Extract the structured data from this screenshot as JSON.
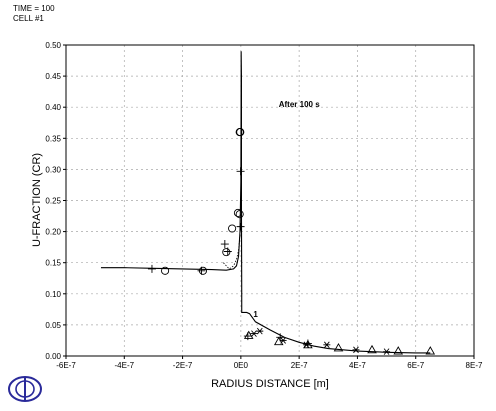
{
  "header": {
    "time": "TIME = 100",
    "cell": "CELL #1"
  },
  "chart_data": {
    "type": "line",
    "title": "",
    "xlabel": "RADIUS DISTANCE [m]",
    "ylabel": "U-FRACTION (CR)",
    "xlim": [
      -6e-07,
      8e-07
    ],
    "ylim": [
      0,
      0.5
    ],
    "grid": true,
    "x_ticks": [
      {
        "v": -6e-07,
        "label": "-6E-7"
      },
      {
        "v": -4e-07,
        "label": "-4E-7"
      },
      {
        "v": -2e-07,
        "label": "-2E-7"
      },
      {
        "v": 0,
        "label": "0E0"
      },
      {
        "v": 2e-07,
        "label": "2E-7"
      },
      {
        "v": 4e-07,
        "label": "4E-7"
      },
      {
        "v": 6e-07,
        "label": "6E-7"
      },
      {
        "v": 8e-07,
        "label": "8E-7"
      }
    ],
    "y_ticks": [
      {
        "v": 0.0,
        "label": "0.00"
      },
      {
        "v": 0.05,
        "label": "0.05"
      },
      {
        "v": 0.1,
        "label": "0.10"
      },
      {
        "v": 0.15,
        "label": "0.15"
      },
      {
        "v": 0.2,
        "label": "0.20"
      },
      {
        "v": 0.25,
        "label": "0.25"
      },
      {
        "v": 0.3,
        "label": "0.30"
      },
      {
        "v": 0.35,
        "label": "0.35"
      },
      {
        "v": 0.4,
        "label": "0.40"
      },
      {
        "v": 0.45,
        "label": "0.45"
      },
      {
        "v": 0.5,
        "label": "0.50"
      }
    ],
    "annotations": [
      {
        "text": "After 100 s",
        "x": 1.3e-07,
        "y": 0.4
      },
      {
        "text": "1",
        "x": 4.3e-08,
        "y": 0.063
      }
    ],
    "series": [
      {
        "style": "solid",
        "x": [
          -4.8e-07,
          -4e-07,
          -3e-07,
          -2e-07,
          -1e-07,
          -5e-08,
          -2.5e-08,
          -1.5e-08,
          -8e-09,
          -3e-09,
          0,
          1e-09,
          1e-09,
          2e-09,
          2e-09,
          3e-09,
          3e-09,
          2e-08,
          3e-08,
          5e-08,
          1e-07,
          1.5e-07,
          2e-07,
          2.5e-07,
          3e-07,
          4e-07,
          5e-07,
          6e-07,
          6.5e-07
        ],
        "y": [
          0.142,
          0.142,
          0.141,
          0.14,
          0.139,
          0.138,
          0.14,
          0.145,
          0.16,
          0.2,
          0.28,
          0.45,
          0.49,
          0.45,
          0.25,
          0.1,
          0.07,
          0.07,
          0.068,
          0.055,
          0.042,
          0.03,
          0.022,
          0.016,
          0.012,
          0.008,
          0.006,
          0.005,
          0.005
        ]
      },
      {
        "style": "dotted",
        "x": [
          -6e-08,
          -4e-08,
          -2.5e-08,
          -1.5e-08,
          -8e-09,
          -2e-09
        ],
        "y": [
          0.15,
          0.14,
          0.145,
          0.155,
          0.17,
          0.2
        ]
      }
    ],
    "markers": [
      {
        "shape": "circle",
        "x": [
          -2.6e-07,
          -1.3e-07,
          -5e-08,
          -3e-08,
          -1e-08,
          -4e-09,
          -4e-09,
          -2e-09
        ],
        "y": [
          0.137,
          0.137,
          0.167,
          0.205,
          0.23,
          0.228,
          0.36,
          0.36
        ]
      },
      {
        "shape": "plus",
        "x": [
          -3.05e-07,
          -1.35e-07,
          -5.5e-08,
          -4.5e-08,
          -1e-09,
          -1e-09,
          2.4e-08,
          1.35e-07,
          2.3e-07
        ],
        "y": [
          0.14,
          0.137,
          0.18,
          0.168,
          0.208,
          0.297,
          0.032,
          0.03,
          0.02
        ]
      },
      {
        "shape": "star",
        "x": [
          4.5e-08,
          6.5e-08,
          1.45e-07,
          2.25e-07,
          2.95e-07,
          3.95e-07,
          5e-07
        ],
        "y": [
          0.036,
          0.04,
          0.025,
          0.018,
          0.018,
          0.01,
          0.007
        ]
      },
      {
        "shape": "triangle",
        "x": [
          2.7e-08,
          1.3e-07,
          2.3e-07,
          3.35e-07,
          4.5e-07,
          5.4e-07,
          6.5e-07
        ],
        "y": [
          0.033,
          0.023,
          0.018,
          0.013,
          0.01,
          0.008,
          0.008
        ]
      }
    ]
  }
}
